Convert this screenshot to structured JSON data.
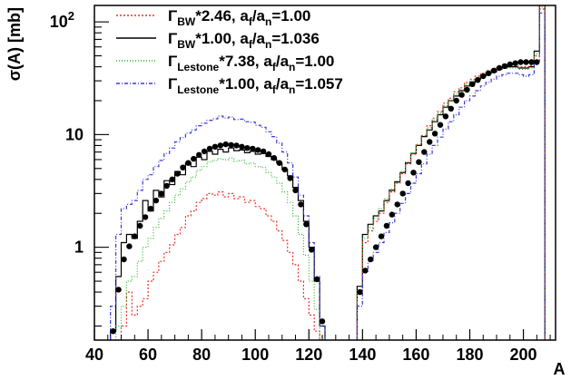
{
  "chart_data": {
    "type": "line",
    "title": "",
    "xlabel": "A",
    "ylabel": "σ(A) [mb]",
    "xscale": "linear",
    "yscale": "log",
    "xlim": [
      40,
      212
    ],
    "ylim": [
      0.15,
      140
    ],
    "grid": false,
    "legend_position": "top-left",
    "x_ticks": [
      {
        "value": 40,
        "label": "40"
      },
      {
        "value": 60,
        "label": "60"
      },
      {
        "value": 80,
        "label": "80"
      },
      {
        "value": 100,
        "label": "100"
      },
      {
        "value": 120,
        "label": "120"
      },
      {
        "value": 140,
        "label": "140"
      },
      {
        "value": 160,
        "label": "160"
      },
      {
        "value": 180,
        "label": "180"
      },
      {
        "value": 200,
        "label": "200"
      }
    ],
    "y_ticks": [
      {
        "value": 1,
        "label": "1"
      },
      {
        "value": 10,
        "label": "10"
      },
      {
        "value": 100,
        "label": "10",
        "sup": "2"
      }
    ],
    "legend": [
      {
        "symbol": "Γ",
        "sub1": "BW",
        "mid": "*2.46, a",
        "sub2": "f",
        "slash": "/a",
        "sub3": "n",
        "end": "=1.00",
        "color": "#e8312a",
        "dash": "2,2"
      },
      {
        "symbol": "Γ",
        "sub1": "BW",
        "mid": "*1.00, a",
        "sub2": "f",
        "slash": "/a",
        "sub3": "n",
        "end": "=1.036",
        "color": "#000000",
        "dash": ""
      },
      {
        "symbol": "Γ",
        "sub1": "Lestone",
        "mid": "*7.38, a",
        "sub2": "f",
        "slash": "/a",
        "sub3": "n",
        "end": "=1.00",
        "color": "#2ab52a",
        "dash": "1,2"
      },
      {
        "symbol": "Γ",
        "sub1": "Lestone",
        "mid": "*1.00, a",
        "sub2": "f",
        "slash": "/a",
        "sub3": "n",
        "end": "=1.057",
        "color": "#3a3ad6",
        "dash": "4,2,1,2"
      }
    ],
    "series": [
      {
        "kind": "points",
        "color": "#000000",
        "x": [
          47,
          49,
          51,
          53,
          55,
          57,
          59,
          61,
          63,
          65,
          67,
          69,
          71,
          73,
          75,
          77,
          79,
          81,
          83,
          85,
          87,
          89,
          91,
          93,
          95,
          97,
          99,
          101,
          103,
          105,
          107,
          109,
          111,
          113,
          115,
          117,
          119,
          121,
          123,
          125,
          139,
          141,
          143,
          145,
          147,
          149,
          151,
          153,
          155,
          157,
          159,
          161,
          163,
          165,
          167,
          169,
          171,
          173,
          175,
          177,
          179,
          181,
          183,
          185,
          187,
          189,
          191,
          193,
          195,
          197,
          199,
          201,
          203,
          205
        ],
        "y": [
          0.18,
          0.42,
          0.78,
          1.02,
          1.25,
          1.55,
          1.85,
          2.2,
          2.6,
          3.0,
          3.5,
          4.0,
          4.5,
          5.1,
          5.6,
          6.1,
          6.6,
          7.1,
          7.5,
          7.8,
          8.0,
          8.2,
          8.1,
          8.0,
          7.8,
          7.6,
          7.5,
          7.3,
          7.1,
          6.7,
          6.2,
          5.6,
          4.9,
          4.1,
          3.2,
          2.4,
          1.6,
          0.95,
          0.52,
          0.22,
          0.4,
          0.62,
          0.78,
          1.0,
          1.25,
          1.55,
          1.95,
          2.4,
          3.0,
          3.7,
          4.6,
          5.7,
          7.0,
          8.6,
          10.2,
          12.2,
          14.5,
          17,
          20,
          22.5,
          25,
          28,
          30.5,
          33,
          35,
          37,
          39,
          40.5,
          42,
          43,
          44,
          44,
          44,
          44
        ]
      },
      {
        "kind": "hist",
        "color": "#000000",
        "dash": "",
        "x": [
          47,
          49,
          51,
          53,
          55,
          57,
          59,
          61,
          63,
          65,
          67,
          69,
          71,
          73,
          75,
          77,
          79,
          81,
          83,
          85,
          87,
          89,
          91,
          93,
          95,
          97,
          99,
          101,
          103,
          105,
          107,
          109,
          111,
          113,
          115,
          117,
          119,
          121,
          123,
          125,
          139,
          141,
          143,
          145,
          147,
          149,
          151,
          153,
          155,
          157,
          159,
          161,
          163,
          165,
          167,
          169,
          171,
          173,
          175,
          177,
          179,
          181,
          183,
          185,
          187,
          189,
          191,
          193,
          195,
          197,
          199,
          201,
          203,
          205,
          207
        ],
        "y": [
          0.18,
          0.55,
          1.1,
          1.3,
          1.2,
          1.7,
          2.6,
          2.1,
          3.2,
          2.8,
          3.9,
          3.6,
          4.7,
          4.4,
          5.6,
          5.2,
          6.3,
          6.0,
          7.1,
          6.7,
          7.4,
          7.0,
          7.6,
          7.2,
          7.3,
          6.9,
          7.1,
          6.7,
          6.8,
          6.4,
          6.0,
          5.6,
          4.9,
          4.3,
          3.4,
          2.6,
          1.7,
          1.0,
          0.5,
          0.2,
          0.45,
          1.3,
          1.6,
          1.9,
          2.1,
          2.6,
          3.2,
          3.8,
          4.6,
          5.6,
          6.8,
          8.0,
          9.6,
          11,
          13,
          15,
          17.5,
          20,
          22,
          24.5,
          27,
          29,
          31,
          33,
          35,
          36,
          38,
          39,
          40,
          40,
          39,
          39,
          40,
          55,
          140
        ]
      },
      {
        "kind": "hist",
        "color": "#e8312a",
        "dash": "2,2",
        "x": [
          47,
          49,
          51,
          53,
          55,
          57,
          59,
          61,
          63,
          65,
          67,
          69,
          71,
          73,
          75,
          77,
          79,
          81,
          83,
          85,
          87,
          89,
          91,
          93,
          95,
          97,
          99,
          101,
          103,
          105,
          107,
          109,
          111,
          113,
          115,
          117,
          119,
          121,
          123,
          125,
          139,
          141,
          143,
          145,
          147,
          149,
          151,
          153,
          155,
          157,
          159,
          161,
          163,
          165,
          167,
          169,
          171,
          173,
          175,
          177,
          179,
          181,
          183,
          185,
          187,
          189,
          191,
          193,
          195,
          197,
          199,
          201,
          203,
          205,
          207
        ],
        "y": [
          0.15,
          0.15,
          0.2,
          0.4,
          0.25,
          0.3,
          0.35,
          0.5,
          0.6,
          0.75,
          0.9,
          1.05,
          1.3,
          1.5,
          1.9,
          2.1,
          2.5,
          2.7,
          3.0,
          2.9,
          3.1,
          2.8,
          3.0,
          2.7,
          2.8,
          2.5,
          2.6,
          2.3,
          2.2,
          1.9,
          1.7,
          1.4,
          1.15,
          0.9,
          0.7,
          0.5,
          0.35,
          0.25,
          0.18,
          0.15,
          0.4,
          1.1,
          1.4,
          1.7,
          2.0,
          2.5,
          3.1,
          3.7,
          4.5,
          5.5,
          6.7,
          8.1,
          9.8,
          12,
          14,
          16,
          19,
          21,
          24,
          26,
          29,
          31,
          33,
          35,
          37,
          38,
          39,
          40,
          41,
          41,
          40,
          40,
          41,
          50,
          130
        ]
      },
      {
        "kind": "hist",
        "color": "#2ab52a",
        "dash": "1,2",
        "x": [
          47,
          49,
          51,
          53,
          55,
          57,
          59,
          61,
          63,
          65,
          67,
          69,
          71,
          73,
          75,
          77,
          79,
          81,
          83,
          85,
          87,
          89,
          91,
          93,
          95,
          97,
          99,
          101,
          103,
          105,
          107,
          109,
          111,
          113,
          115,
          117,
          119,
          121,
          123,
          125,
          139,
          141,
          143,
          145,
          147,
          149,
          151,
          153,
          155,
          157,
          159,
          161,
          163,
          165,
          167,
          169,
          171,
          173,
          175,
          177,
          179,
          181,
          183,
          185,
          187,
          189,
          191,
          193,
          195,
          197,
          199,
          201,
          203,
          205,
          207
        ],
        "y": [
          0.15,
          0.2,
          0.3,
          0.5,
          0.55,
          0.75,
          1.0,
          1.2,
          1.5,
          1.8,
          2.1,
          2.5,
          2.9,
          3.3,
          3.8,
          4.2,
          4.8,
          5.2,
          5.7,
          5.9,
          6.1,
          6.0,
          6.2,
          5.8,
          5.9,
          5.5,
          5.6,
          5.2,
          5.1,
          4.6,
          4.2,
          3.7,
          3.1,
          2.5,
          1.9,
          1.3,
          0.85,
          0.5,
          0.28,
          0.16,
          0.42,
          1.2,
          1.5,
          1.8,
          2.2,
          2.7,
          3.3,
          3.9,
          4.7,
          5.7,
          6.9,
          8.2,
          9.8,
          11.5,
          13.5,
          15.5,
          18,
          20,
          23,
          25,
          28,
          30,
          32,
          34,
          36,
          37,
          38,
          39,
          39,
          39,
          38,
          38,
          39,
          52,
          135
        ]
      },
      {
        "kind": "hist",
        "color": "#3a3ad6",
        "dash": "4,2,1,2",
        "x": [
          47,
          49,
          51,
          53,
          55,
          57,
          59,
          61,
          63,
          65,
          67,
          69,
          71,
          73,
          75,
          77,
          79,
          81,
          83,
          85,
          87,
          89,
          91,
          93,
          95,
          97,
          99,
          101,
          103,
          105,
          107,
          109,
          111,
          113,
          115,
          117,
          119,
          121,
          123,
          125,
          139,
          141,
          143,
          145,
          147,
          149,
          151,
          153,
          155,
          157,
          159,
          161,
          163,
          165,
          167,
          169,
          171,
          173,
          175,
          177,
          179,
          181,
          183,
          185,
          187,
          189,
          191,
          193,
          195,
          197,
          199,
          201,
          203,
          205,
          207
        ],
        "y": [
          0.3,
          1.3,
          2.2,
          2.4,
          2.6,
          3.2,
          4.0,
          4.4,
          5.2,
          5.9,
          6.8,
          7.6,
          8.6,
          9.4,
          10.3,
          11.0,
          12.0,
          12.6,
          13.4,
          13.8,
          14.6,
          14.0,
          14.3,
          13.6,
          13.7,
          13.0,
          12.9,
          12.1,
          11.6,
          10.6,
          9.6,
          8.4,
          7.0,
          5.6,
          4.2,
          2.9,
          1.9,
          1.1,
          0.55,
          0.2,
          0.3,
          0.6,
          0.75,
          0.9,
          1.1,
          1.35,
          1.65,
          2.0,
          2.45,
          3.0,
          3.7,
          4.5,
          5.5,
          6.7,
          8.0,
          9.5,
          11.2,
          13,
          15,
          17.5,
          20,
          22,
          24.5,
          27,
          29,
          31,
          33,
          34,
          35,
          35,
          34,
          33,
          34,
          45,
          120
        ]
      }
    ]
  }
}
